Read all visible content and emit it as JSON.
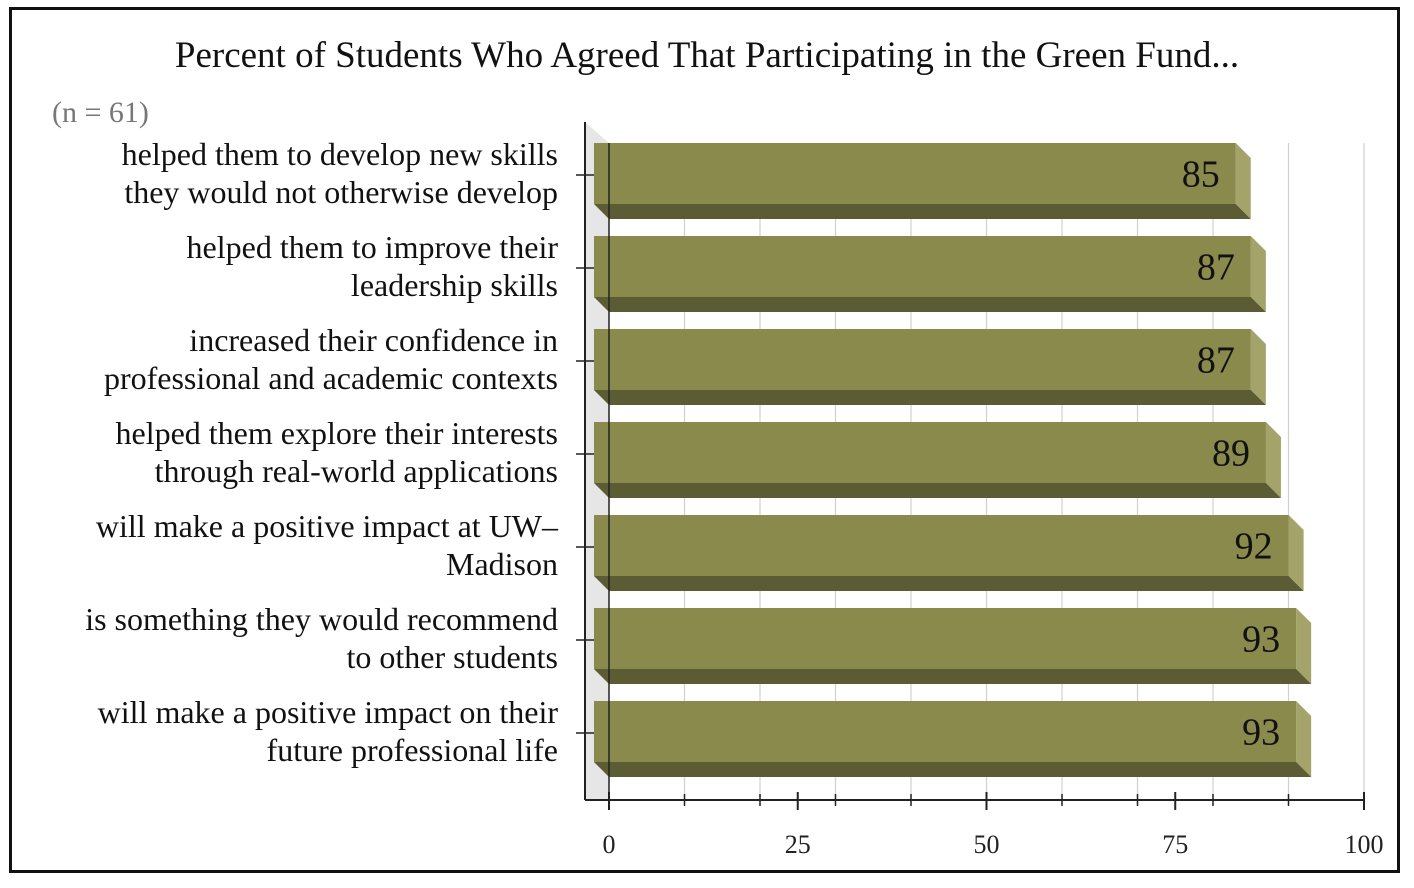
{
  "chart_data": {
    "type": "bar",
    "orientation": "horizontal",
    "title": "Percent of Students Who Agreed That Participating in the Green Fund...",
    "subtitle": "(n = 61)",
    "categories": [
      [
        "helped them to develop new skills",
        "they would not otherwise develop"
      ],
      [
        "helped them to improve their",
        "leadership skills"
      ],
      [
        "increased their confidence in",
        "professional and academic contexts"
      ],
      [
        "helped them explore their interests",
        "through real-world applications"
      ],
      [
        "will make a positive impact at UW–",
        "Madison"
      ],
      [
        "is something they would recommend",
        "to other students"
      ],
      [
        "will make a positive impact on their",
        "future professional life"
      ]
    ],
    "values": [
      85,
      87,
      87,
      89,
      92,
      93,
      93
    ],
    "xlim": [
      0,
      100
    ],
    "xticks": [
      0,
      25,
      50,
      75,
      100
    ],
    "grid": true,
    "colors": {
      "bar_front": "#8a8a4d",
      "bar_bottom": "#5b5b34",
      "bar_end": "#a3a36a",
      "wall": "#e6e6e6",
      "gridline": "#d0d0d0",
      "axis": "#222222"
    }
  }
}
